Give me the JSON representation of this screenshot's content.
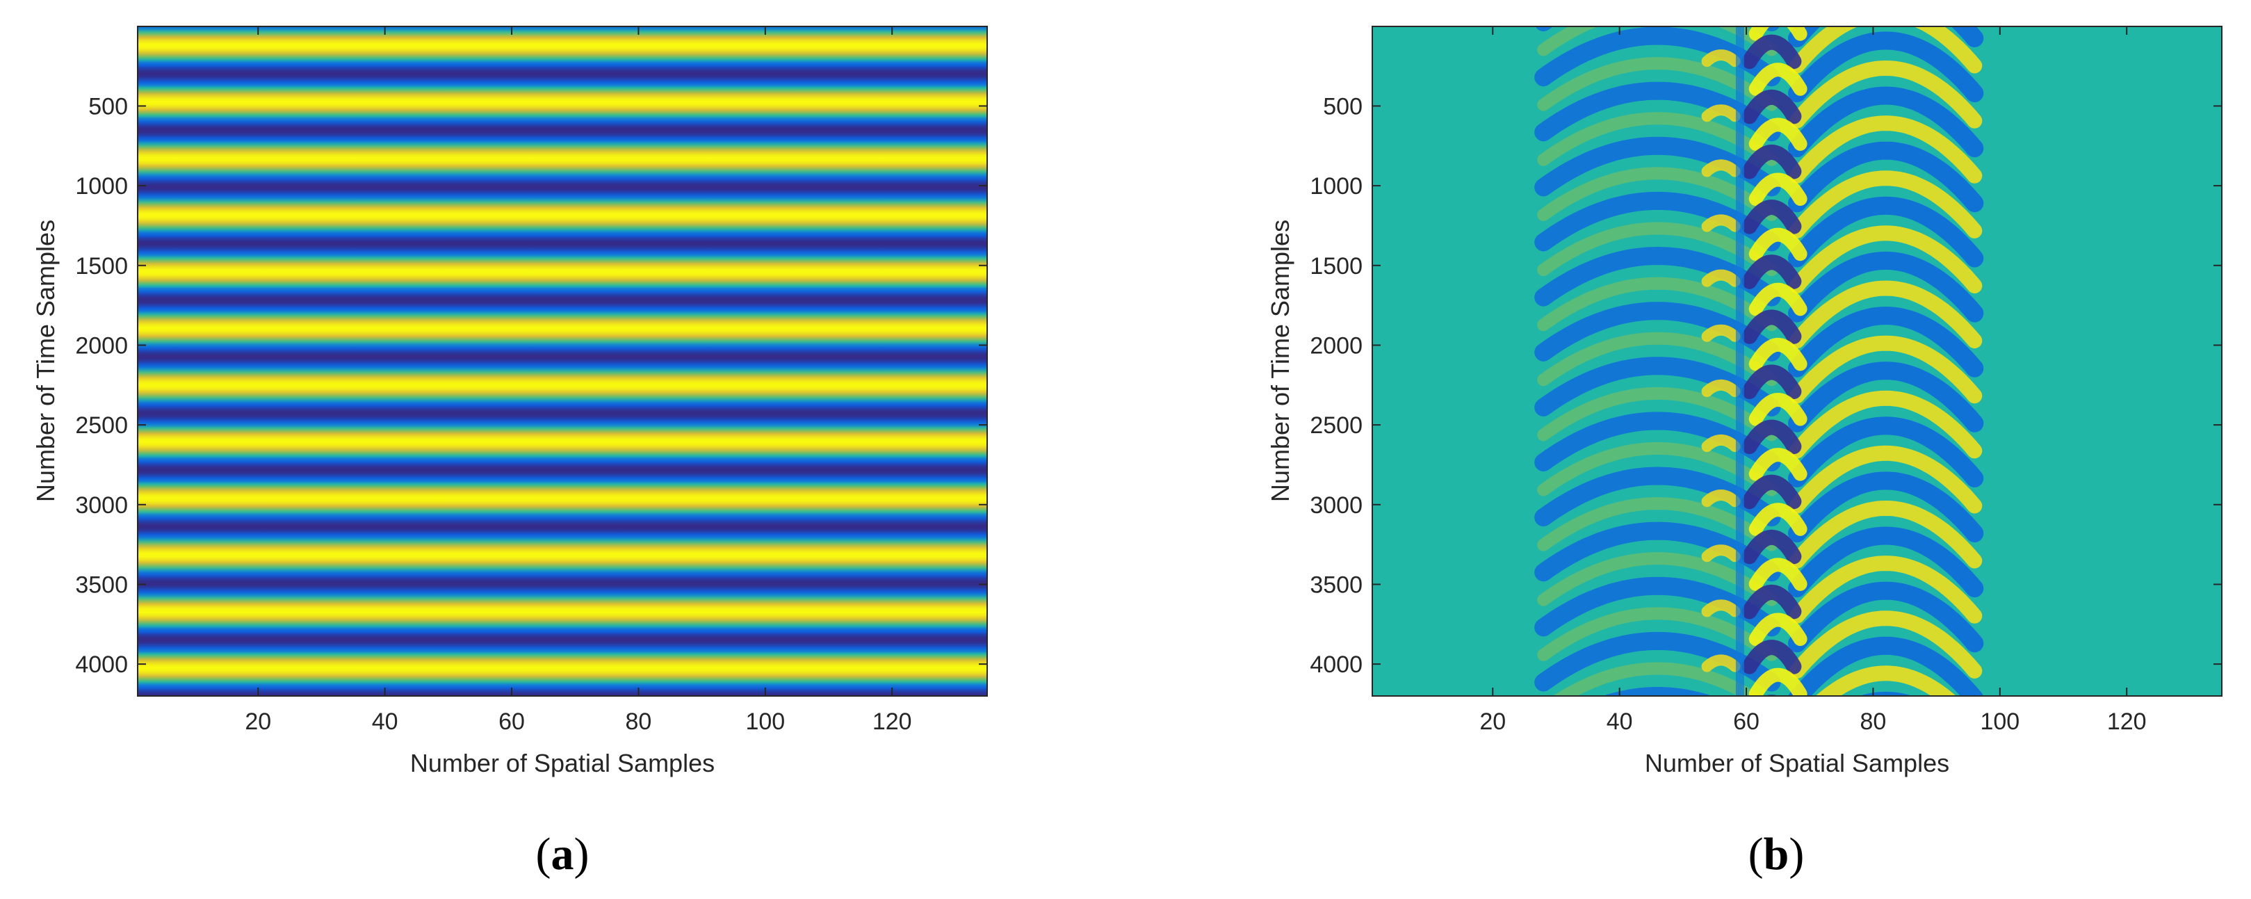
{
  "chart_data": [
    {
      "type": "heatmap",
      "panel_label": {
        "open": "(",
        "letter": "a",
        "close": ")"
      },
      "xlabel": "Number of Spatial Samples",
      "ylabel": "Number of Time Samples",
      "xlim": [
        1,
        135
      ],
      "ylim": [
        1,
        4200
      ],
      "y_reversed": true,
      "xticks": [
        20,
        40,
        60,
        80,
        100,
        120
      ],
      "yticks": [
        500,
        1000,
        1500,
        2000,
        2500,
        3000,
        3500,
        4000
      ],
      "colormap": "parula",
      "description_pattern": "horizontal bands",
      "pattern": {
        "kind": "horizontal-bands",
        "period_time_samples": 355,
        "phase_time_samples": 120
      }
    },
    {
      "type": "heatmap",
      "panel_label": {
        "open": "(",
        "letter": "b",
        "close": ")"
      },
      "xlabel": "Number of Spatial Samples",
      "ylabel": "Number of Time Samples",
      "xlim": [
        1,
        135
      ],
      "ylim": [
        1,
        4200
      ],
      "y_reversed": true,
      "xticks": [
        20,
        40,
        60,
        80,
        100,
        120
      ],
      "yticks": [
        500,
        1000,
        1500,
        2000,
        2500,
        3000,
        3500,
        4000
      ],
      "colormap": "parula",
      "pattern": {
        "kind": "arched-wavefronts",
        "period_time_samples": 345,
        "left_source_spatial": 46,
        "right_source_spatial": 82,
        "discontinuity_spatial": 59,
        "active_range_spatial": [
          26,
          96
        ]
      }
    }
  ],
  "colors": {
    "parula_low": "#352a87",
    "parula_mid_low": "#0f75d5",
    "parula_mid": "#21b7a7",
    "parula_mid_high": "#a4be57",
    "parula_high": "#f9fb0e",
    "axis": "#262626",
    "background": "#ffffff"
  }
}
